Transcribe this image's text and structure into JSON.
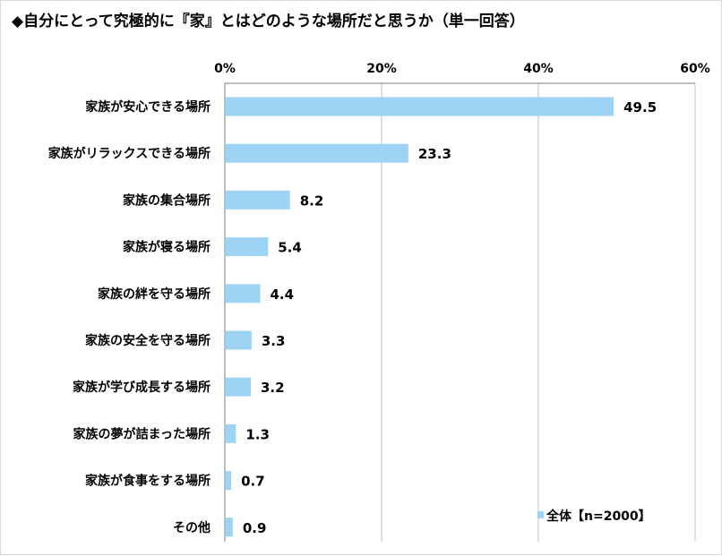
{
  "colors": {
    "bar": "#9fd3f5",
    "grid": "#bfbfbf",
    "axis": "#7f7f7f"
  },
  "chart_data": {
    "type": "bar",
    "orientation": "horizontal",
    "title": "◆自分にとって究極的に『家』とはどのような場所だと思うか（単一回答）",
    "categories": [
      "家族が安心できる場所",
      "家族がリラックスできる場所",
      "家族の集合場所",
      "家族が寝る場所",
      "家族の絆を守る場所",
      "家族の安全を守る場所",
      "家族が学び成長する場所",
      "家族の夢が詰まった場所",
      "家族が食事をする場所",
      "その他"
    ],
    "series": [
      {
        "name": "全体【n=2000】",
        "values": [
          49.5,
          23.3,
          8.2,
          5.4,
          4.4,
          3.3,
          3.2,
          1.3,
          0.7,
          0.9
        ],
        "value_labels": [
          "49.5",
          "23.3",
          "8.2",
          "5.4",
          "4.4",
          "3.3",
          "3.2",
          "1.3",
          "0.7",
          "0.9"
        ]
      }
    ],
    "xlim": [
      0,
      60
    ],
    "xticks": [
      0,
      20,
      40,
      60
    ],
    "xtick_labels": [
      "0%",
      "20%",
      "40%",
      "60%"
    ],
    "axis_position": "top",
    "grid": true,
    "legend_position": "bottom-right"
  }
}
